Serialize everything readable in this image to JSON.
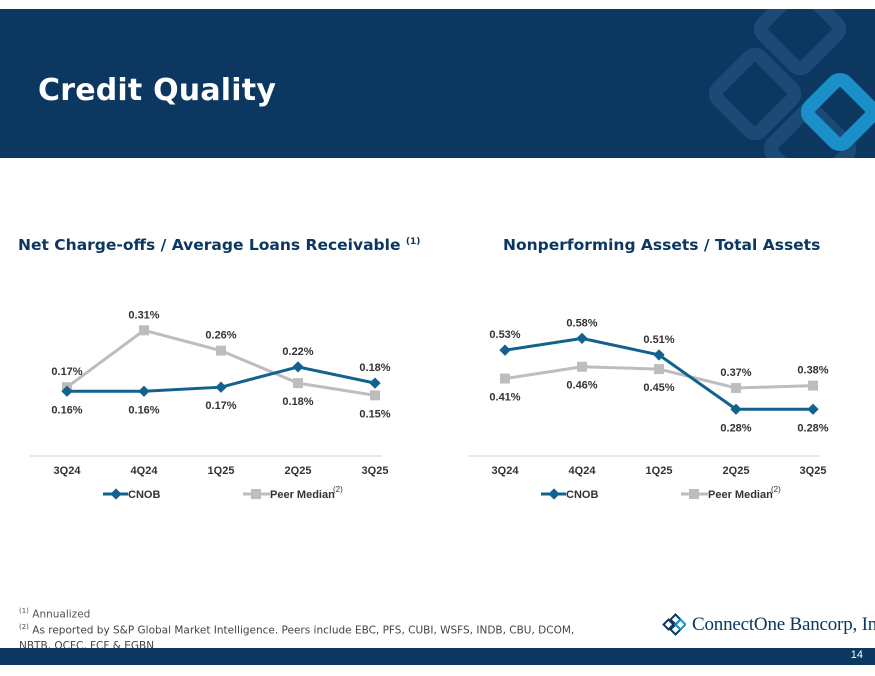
{
  "header": {
    "title": "Credit Quality"
  },
  "colors": {
    "navy": "#0b3761",
    "cnob": "#12628f",
    "peer": "#bdbdbd",
    "accent": "#1b8fc7"
  },
  "charts": {
    "left": {
      "title": "Net Charge-offs / Average Loans Receivable",
      "title_sup": "(1)"
    },
    "right": {
      "title": "Nonperforming Assets / Total Assets",
      "title_sup": ""
    }
  },
  "legend": {
    "cnob": "CNOB",
    "peer": "Peer Median",
    "peer_sup": "(2)"
  },
  "chart_data": [
    {
      "type": "line",
      "title": "Net Charge-offs / Average Loans Receivable (1)",
      "categories": [
        "3Q24",
        "4Q24",
        "1Q25",
        "2Q25",
        "3Q25"
      ],
      "series": [
        {
          "name": "CNOB",
          "values": [
            0.16,
            0.16,
            0.17,
            0.22,
            0.18
          ],
          "labels": [
            "0.16%",
            "0.16%",
            "0.17%",
            "0.22%",
            "0.18%"
          ]
        },
        {
          "name": "Peer Median (2)",
          "values": [
            0.17,
            0.31,
            0.26,
            0.18,
            0.15
          ],
          "labels": [
            "0.17%",
            "0.31%",
            "0.26%",
            "0.18%",
            "0.15%"
          ]
        }
      ],
      "ylim": [
        0.04,
        0.36
      ],
      "grid": false,
      "legend": "bottom"
    },
    {
      "type": "line",
      "title": "Nonperforming Assets / Total Assets",
      "categories": [
        "3Q24",
        "4Q24",
        "1Q25",
        "2Q25",
        "3Q25"
      ],
      "series": [
        {
          "name": "CNOB",
          "values": [
            0.53,
            0.58,
            0.51,
            0.28,
            0.28
          ],
          "labels": [
            "0.53%",
            "0.58%",
            "0.51%",
            "0.28%",
            "0.28%"
          ]
        },
        {
          "name": "Peer Median (2)",
          "values": [
            0.41,
            0.46,
            0.45,
            0.37,
            0.38
          ],
          "labels": [
            "0.41%",
            "0.46%",
            "0.45%",
            "0.37%",
            "0.38%"
          ]
        }
      ],
      "ylim": [
        0.15,
        0.7
      ],
      "grid": false,
      "legend": "bottom"
    }
  ],
  "footnotes": {
    "fn1_sup": "(1)",
    "fn1": "Annualized",
    "fn2_sup": "(2)",
    "fn2_line1": "As reported by S&P Global Market Intelligence. Peers include EBC, PFS, CUBI, WSFS, INDB, CBU, DCOM,",
    "fn2_line2": "NBTB, OCFC, FCF & EGBN"
  },
  "logo": {
    "text": "ConnectOne Bancorp, Inc.",
    "icon": "connectone-diamond-logo-icon"
  },
  "footer": {
    "page_number": "14"
  }
}
